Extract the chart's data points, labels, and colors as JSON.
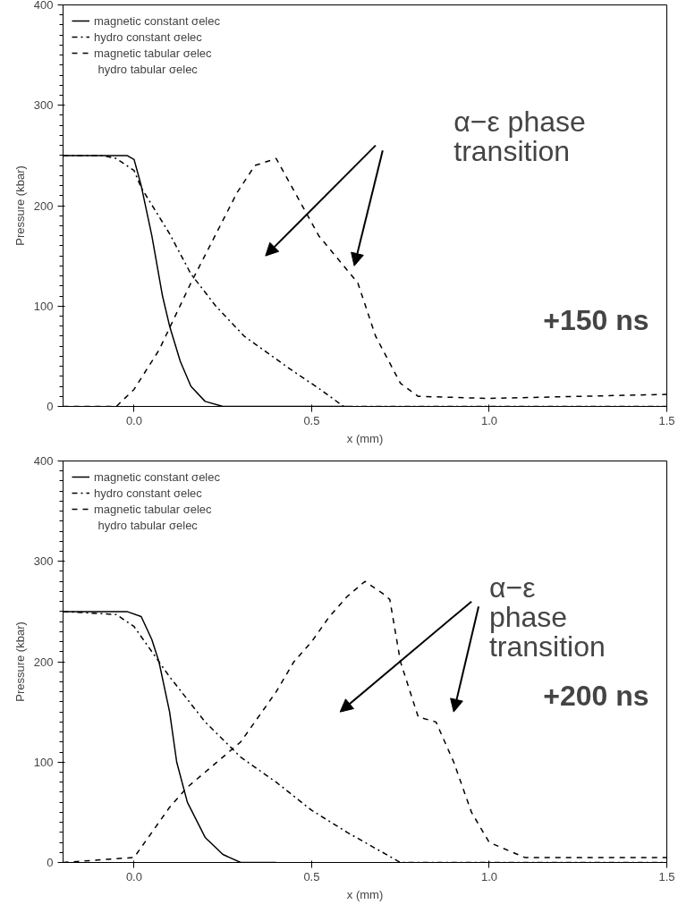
{
  "chart_data": [
    {
      "type": "line",
      "xlabel": "x (mm)",
      "ylabel": "Pressure (kbar)",
      "xlim": [
        -0.2,
        1.5
      ],
      "ylim": [
        0,
        400
      ],
      "xticks": [
        {
          "value": 0,
          "label": "0.0"
        },
        {
          "value": 0.5,
          "label": "0.5"
        },
        {
          "value": 1,
          "label": "1.0"
        },
        {
          "value": 1.5,
          "label": "1.5"
        }
      ],
      "yticks": [
        0,
        100,
        200,
        300,
        400
      ],
      "grid": false,
      "legend": "top left",
      "marker": "none",
      "series": [
        {
          "name": "magnetic constant σelec",
          "color": "#000000",
          "line_style": "solid",
          "x": [
            -0.2,
            -0.02,
            0.0,
            0.02,
            0.05,
            0.08,
            0.1,
            0.13,
            0.16,
            0.2,
            0.25,
            0.6
          ],
          "values": [
            250,
            250,
            246,
            220,
            170,
            110,
            80,
            45,
            20,
            5,
            0,
            0
          ]
        },
        {
          "name": "hydro constant σelec",
          "color": "#000000",
          "line_style": "dashdot",
          "x": [
            -0.2,
            -0.09,
            -0.05,
            0.0,
            0.02,
            0.1,
            0.16,
            0.23,
            0.31,
            0.44,
            0.52,
            0.59,
            1.5
          ],
          "values": [
            250,
            250,
            247,
            235,
            218,
            172,
            132,
            100,
            70,
            37,
            18,
            0,
            0
          ]
        },
        {
          "name": "magnetic tabular σelec",
          "color": "#000000",
          "line_style": "dashed",
          "x": [
            -0.2,
            -0.05,
            0.0,
            0.07,
            0.16,
            0.29,
            0.34,
            0.4,
            0.45,
            0.52,
            0.63,
            0.68,
            0.75,
            0.8,
            1.0,
            1.5
          ],
          "values": [
            0,
            0,
            17,
            56,
            123,
            213,
            240,
            247,
            215,
            170,
            123,
            70,
            23,
            10,
            8,
            12
          ]
        }
      ],
      "annotations": [
        "hydro tabular σelec",
        "α−ε phase\ntransition",
        "+150 ns"
      ]
    },
    {
      "type": "line",
      "xlabel": "x (mm)",
      "ylabel": "Pressure (kbar)",
      "xlim": [
        -0.2,
        1.5
      ],
      "ylim": [
        0,
        400
      ],
      "xticks": [
        {
          "value": 0,
          "label": "0.0"
        },
        {
          "value": 0.5,
          "label": "0.5"
        },
        {
          "value": 1,
          "label": "1.0"
        },
        {
          "value": 1.5,
          "label": "1.5"
        }
      ],
      "yticks": [
        0,
        100,
        200,
        300,
        400
      ],
      "grid": false,
      "legend": "top left",
      "marker": "none",
      "series": [
        {
          "name": "magnetic constant σelec",
          "color": "#000000",
          "line_style": "solid",
          "x": [
            -0.2,
            -0.02,
            0.02,
            0.05,
            0.07,
            0.1,
            0.12,
            0.15,
            0.2,
            0.25,
            0.3,
            0.4
          ],
          "values": [
            250,
            250,
            245,
            222,
            200,
            150,
            100,
            60,
            25,
            8,
            0,
            0
          ]
        },
        {
          "name": "hydro constant σelec",
          "color": "#000000",
          "line_style": "dashdot",
          "x": [
            -0.2,
            -0.05,
            0.0,
            0.05,
            0.1,
            0.2,
            0.3,
            0.4,
            0.5,
            0.6,
            0.7,
            0.75,
            1.5
          ],
          "values": [
            250,
            247,
            235,
            210,
            185,
            140,
            105,
            80,
            52,
            30,
            10,
            0,
            0
          ]
        },
        {
          "name": "magnetic tabular σelec",
          "color": "#000000",
          "line_style": "dashed",
          "x": [
            -0.2,
            0.0,
            0.05,
            0.1,
            0.15,
            0.2,
            0.3,
            0.35,
            0.4,
            0.45,
            0.5,
            0.55,
            0.6,
            0.65,
            0.7,
            0.72,
            0.75,
            0.8,
            0.85,
            0.9,
            0.95,
            1.0,
            1.1,
            1.5
          ],
          "values": [
            0,
            5,
            30,
            55,
            75,
            90,
            120,
            145,
            170,
            200,
            220,
            245,
            265,
            280,
            268,
            262,
            200,
            145,
            140,
            100,
            50,
            20,
            5,
            5
          ]
        }
      ],
      "annotations": [
        "hydro tabular σelec",
        "α−ε\nphase\ntransition",
        "+200 ns"
      ]
    }
  ]
}
